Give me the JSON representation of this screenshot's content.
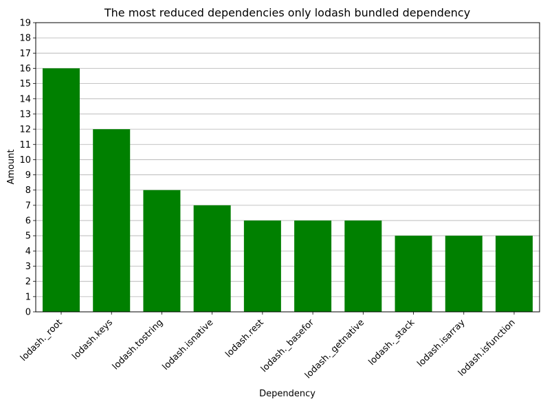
{
  "chart_data": {
    "type": "bar",
    "title": "The most reduced dependencies only lodash bundled dependency",
    "xlabel": "Dependency",
    "ylabel": "Amount",
    "categories": [
      "lodash._root",
      "lodash.keys",
      "lodash.tostring",
      "lodash.isnative",
      "lodash.rest",
      "lodash._basefor",
      "lodash._getnative",
      "lodash._stack",
      "lodash.isarray",
      "lodash.isfunction"
    ],
    "values": [
      16,
      12,
      8,
      7,
      6,
      6,
      6,
      5,
      5,
      5
    ],
    "ylim": [
      0,
      19
    ],
    "yticks": [
      0,
      1,
      2,
      3,
      4,
      5,
      6,
      7,
      8,
      9,
      10,
      11,
      12,
      13,
      14,
      15,
      16,
      17,
      18,
      19
    ],
    "bar_color": "#008000",
    "grid": "y-major",
    "legend": "none"
  }
}
